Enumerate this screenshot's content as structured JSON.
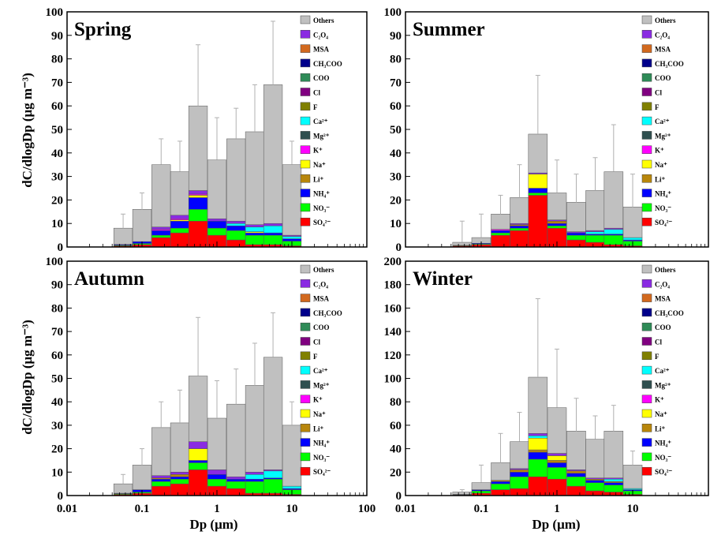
{
  "figure": {
    "ylabel": "dC/dlogDp (μg m⁻³)",
    "xlabel": "Dp (μm)"
  },
  "colors": {
    "Others": "#c0c0c0",
    "C2O4": "#8a2be2",
    "MSA": "#d2691e",
    "CH3COO": "#00008b",
    "COO": "#2e8b57",
    "Cl": "#800080",
    "F": "#808000",
    "Ca": "#00ffff",
    "Mg": "#2f4f4f",
    "K": "#ff00ff",
    "Na": "#ffff00",
    "Li": "#b8860b",
    "NH4": "#0000ff",
    "NO3": "#00ff00",
    "SO4": "#ff0000"
  },
  "legend_labels": [
    {
      "key": "Others",
      "text": "Others"
    },
    {
      "key": "C2O4",
      "text": "C₂O₄"
    },
    {
      "key": "MSA",
      "text": "MSA"
    },
    {
      "key": "CH3COO",
      "text": "CH₃COO"
    },
    {
      "key": "COO",
      "text": "COO"
    },
    {
      "key": "Cl",
      "text": "Cl"
    },
    {
      "key": "F",
      "text": "F"
    },
    {
      "key": "Ca",
      "text": "Ca²⁺"
    },
    {
      "key": "Mg",
      "text": "Mg²⁺"
    },
    {
      "key": "K",
      "text": "K⁺"
    },
    {
      "key": "Na",
      "text": "Na⁺"
    },
    {
      "key": "Li",
      "text": "Li⁺"
    },
    {
      "key": "NH4",
      "text": "NH₄⁺"
    },
    {
      "key": "NO3",
      "text": "NO₃⁻"
    },
    {
      "key": "SO4",
      "text": "SO₄²⁻"
    }
  ],
  "chart_data": [
    {
      "type": "bar",
      "stacked": true,
      "title": "Spring",
      "xscale": "log",
      "xlim": [
        0.01,
        100
      ],
      "ylim": [
        0,
        100
      ],
      "yticks": [
        0,
        10,
        20,
        30,
        40,
        50,
        60,
        70,
        80,
        90,
        100
      ],
      "show_ylabel": true,
      "show_xlabel": false,
      "show_xticklabels": false,
      "bins": [
        {
          "x": 0.056,
          "total": 8,
          "err": 6,
          "SO4": 0.5,
          "NO3": 0.3,
          "NH4": 0.3,
          "Others": 6.9
        },
        {
          "x": 0.1,
          "total": 16,
          "err": 7,
          "SO4": 1,
          "NO3": 0.5,
          "NH4": 0.8,
          "Others": 13.7
        },
        {
          "x": 0.18,
          "total": 35,
          "err": 11,
          "SO4": 4,
          "NO3": 1,
          "NH4": 2,
          "K": 0.5,
          "C2O4": 1,
          "Others": 26.5
        },
        {
          "x": 0.32,
          "total": 32,
          "err": 13,
          "SO4": 6,
          "NO3": 2,
          "NH4": 3,
          "K": 0.5,
          "Na": 0.5,
          "C2O4": 1.5,
          "Others": 18.5
        },
        {
          "x": 0.56,
          "total": 60,
          "err": 26,
          "SO4": 11,
          "NO3": 5,
          "Na": 1,
          "NH4": 5,
          "K": 0.5,
          "C2O4": 1.5,
          "Others": 36
        },
        {
          "x": 1.0,
          "total": 37,
          "err": 18,
          "SO4": 5,
          "NO3": 3,
          "NH4": 3,
          "C2O4": 1,
          "Others": 25
        },
        {
          "x": 1.8,
          "total": 46,
          "err": 13,
          "SO4": 3,
          "NO3": 4,
          "NH4": 2,
          "Ca": 1,
          "C2O4": 1,
          "Others": 35
        },
        {
          "x": 3.2,
          "total": 49,
          "err": 20,
          "SO4": 1,
          "NO3": 4,
          "Ca": 2,
          "Na": 0.5,
          "NH4": 1,
          "C2O4": 1,
          "Others": 39.5
        },
        {
          "x": 5.6,
          "total": 69,
          "err": 27,
          "SO4": 1,
          "NO3": 4,
          "Ca": 3,
          "NH4": 1,
          "C2O4": 1,
          "Others": 59
        },
        {
          "x": 10.0,
          "total": 35,
          "err": 10,
          "SO4": 0.5,
          "NO3": 2,
          "Ca": 1,
          "NH4": 1,
          "C2O4": 0.5,
          "Others": 30
        }
      ]
    },
    {
      "type": "bar",
      "stacked": true,
      "title": "Summer",
      "xscale": "log",
      "xlim": [
        0.01,
        100
      ],
      "ylim": [
        0,
        100
      ],
      "yticks": [
        0,
        10,
        20,
        30,
        40,
        50,
        60,
        70,
        80,
        90,
        100
      ],
      "show_ylabel": false,
      "show_xlabel": false,
      "show_xticklabels": false,
      "bins": [
        {
          "x": 0.056,
          "total": 2,
          "err": 9,
          "SO4": 0.5,
          "NO3": 0.2,
          "Others": 1.3
        },
        {
          "x": 0.1,
          "total": 4,
          "err": 10,
          "SO4": 1,
          "NO3": 0.3,
          "NH4": 0.3,
          "Others": 2.4
        },
        {
          "x": 0.18,
          "total": 14,
          "err": 8,
          "SO4": 5,
          "NO3": 1,
          "NH4": 1,
          "K": 0.5,
          "Others": 6.5
        },
        {
          "x": 0.32,
          "total": 21,
          "err": 14,
          "SO4": 7,
          "NO3": 1,
          "NH4": 1,
          "Li": 0.5,
          "C2O4": 0.5,
          "Others": 11
        },
        {
          "x": 0.56,
          "total": 48,
          "err": 25,
          "SO4": 22,
          "NO3": 1,
          "Na": 6,
          "NH4": 2,
          "C2O4": 0.5,
          "Others": 16.5
        },
        {
          "x": 1.0,
          "total": 23,
          "err": 14,
          "SO4": 8,
          "NO3": 1,
          "Li": 1,
          "NH4": 1,
          "C2O4": 0.5,
          "Others": 11.5
        },
        {
          "x": 1.8,
          "total": 19,
          "err": 12,
          "SO4": 3,
          "NO3": 2,
          "NH4": 1,
          "C2O4": 0.5,
          "Others": 12.5
        },
        {
          "x": 3.2,
          "total": 24,
          "err": 14,
          "SO4": 2,
          "NO3": 3,
          "Ca": 1,
          "NH4": 0.5,
          "C2O4": 0.5,
          "Others": 17
        },
        {
          "x": 5.6,
          "total": 32,
          "err": 20,
          "SO4": 1,
          "NO3": 4,
          "Ca": 2,
          "NH4": 0.5,
          "C2O4": 0.5,
          "Others": 24
        },
        {
          "x": 10.0,
          "total": 17,
          "err": 14,
          "SO4": 0.5,
          "NO3": 2,
          "Ca": 1,
          "NH4": 0.5,
          "Others": 13
        }
      ]
    },
    {
      "type": "bar",
      "stacked": true,
      "title": "Autumn",
      "xscale": "log",
      "xlim": [
        0.01,
        100
      ],
      "ylim": [
        0,
        100
      ],
      "yticks": [
        0,
        10,
        20,
        30,
        40,
        50,
        60,
        70,
        80,
        90,
        100
      ],
      "xticklabels": [
        "0.01",
        "0.1",
        "1",
        "10",
        "100"
      ],
      "show_ylabel": true,
      "show_xlabel": true,
      "show_xticklabels": true,
      "bins": [
        {
          "x": 0.056,
          "total": 5,
          "err": 4,
          "SO4": 0.5,
          "NO3": 0.3,
          "NH4": 0.2,
          "Others": 4
        },
        {
          "x": 0.1,
          "total": 13,
          "err": 7,
          "SO4": 1,
          "NO3": 0.5,
          "NH4": 1,
          "Others": 10.5
        },
        {
          "x": 0.18,
          "total": 29,
          "err": 11,
          "SO4": 4,
          "NO3": 2,
          "NH4": 1,
          "Li": 0.5,
          "C2O4": 1,
          "Others": 20.5
        },
        {
          "x": 0.32,
          "total": 31,
          "err": 14,
          "SO4": 5,
          "NO3": 2,
          "NH4": 1,
          "Li": 1,
          "C2O4": 1,
          "Others": 21
        },
        {
          "x": 0.56,
          "total": 51,
          "err": 25,
          "SO4": 11,
          "NO3": 3,
          "Na": 5,
          "NH4": 1,
          "C2O4": 3,
          "Others": 28
        },
        {
          "x": 1.0,
          "total": 33,
          "err": 16,
          "SO4": 4,
          "NO3": 3,
          "NH4": 2,
          "C2O4": 2,
          "Others": 22
        },
        {
          "x": 1.8,
          "total": 39,
          "err": 15,
          "SO4": 3,
          "NO3": 3,
          "NH4": 1,
          "C2O4": 1,
          "Others": 31
        },
        {
          "x": 3.2,
          "total": 47,
          "err": 18,
          "SO4": 1,
          "NO3": 5,
          "Ca": 2,
          "NH4": 1,
          "C2O4": 1,
          "Others": 37
        },
        {
          "x": 5.6,
          "total": 59,
          "err": 19,
          "SO4": 1,
          "NO3": 6,
          "Ca": 3,
          "NH4": 0.5,
          "C2O4": 0.5,
          "Others": 48
        },
        {
          "x": 10.0,
          "total": 30,
          "err": 10,
          "SO4": 0.5,
          "NO3": 2,
          "Ca": 1,
          "NH4": 0.5,
          "Others": 26
        }
      ]
    },
    {
      "type": "bar",
      "stacked": true,
      "title": "Winter",
      "xscale": "log",
      "xlim": [
        0.01,
        100
      ],
      "ylim": [
        0,
        200
      ],
      "yticks": [
        0,
        20,
        40,
        60,
        80,
        100,
        120,
        140,
        160,
        180,
        200
      ],
      "xticklabels": [
        "0.01",
        "0.1",
        "1",
        "10"
      ],
      "show_ylabel": false,
      "show_xlabel": true,
      "show_xticklabels": true,
      "bins": [
        {
          "x": 0.056,
          "total": 3,
          "err": 2,
          "SO4": 0.5,
          "NO3": 0.3,
          "NH4": 0.2,
          "Others": 2
        },
        {
          "x": 0.1,
          "total": 11,
          "err": 15,
          "SO4": 2,
          "NO3": 2,
          "NH4": 1,
          "Others": 6
        },
        {
          "x": 0.18,
          "total": 28,
          "err": 25,
          "SO4": 5,
          "NO3": 5,
          "NH4": 2,
          "Li": 1,
          "Others": 15
        },
        {
          "x": 0.32,
          "total": 46,
          "err": 25,
          "SO4": 6,
          "NO3": 10,
          "NH4": 4,
          "Li": 2,
          "C2O4": 1,
          "Others": 23
        },
        {
          "x": 0.56,
          "total": 101,
          "err": 67,
          "SO4": 16,
          "NO3": 15,
          "NH4": 6,
          "Ca": 2,
          "Na": 10,
          "Li": 2,
          "C2O4": 2,
          "Others": 48
        },
        {
          "x": 1.0,
          "total": 75,
          "err": 50,
          "SO4": 14,
          "NO3": 10,
          "NH4": 4,
          "Na": 4,
          "Li": 2,
          "C2O4": 2,
          "Others": 39
        },
        {
          "x": 1.8,
          "total": 55,
          "err": 28,
          "SO4": 8,
          "NO3": 8,
          "NH4": 3,
          "Li": 2,
          "C2O4": 1,
          "Others": 33
        },
        {
          "x": 3.2,
          "total": 48,
          "err": 20,
          "SO4": 4,
          "NO3": 7,
          "NH4": 2,
          "Li": 1,
          "C2O4": 1,
          "Others": 33
        },
        {
          "x": 5.6,
          "total": 55,
          "err": 22,
          "SO4": 3,
          "NO3": 6,
          "Ca": 2,
          "NH4": 2,
          "Li": 1,
          "C2O4": 1,
          "Others": 40
        },
        {
          "x": 10.0,
          "total": 26,
          "err": 12,
          "SO4": 1,
          "NO3": 3,
          "Ca": 1,
          "NH4": 1,
          "Others": 20
        }
      ]
    }
  ]
}
